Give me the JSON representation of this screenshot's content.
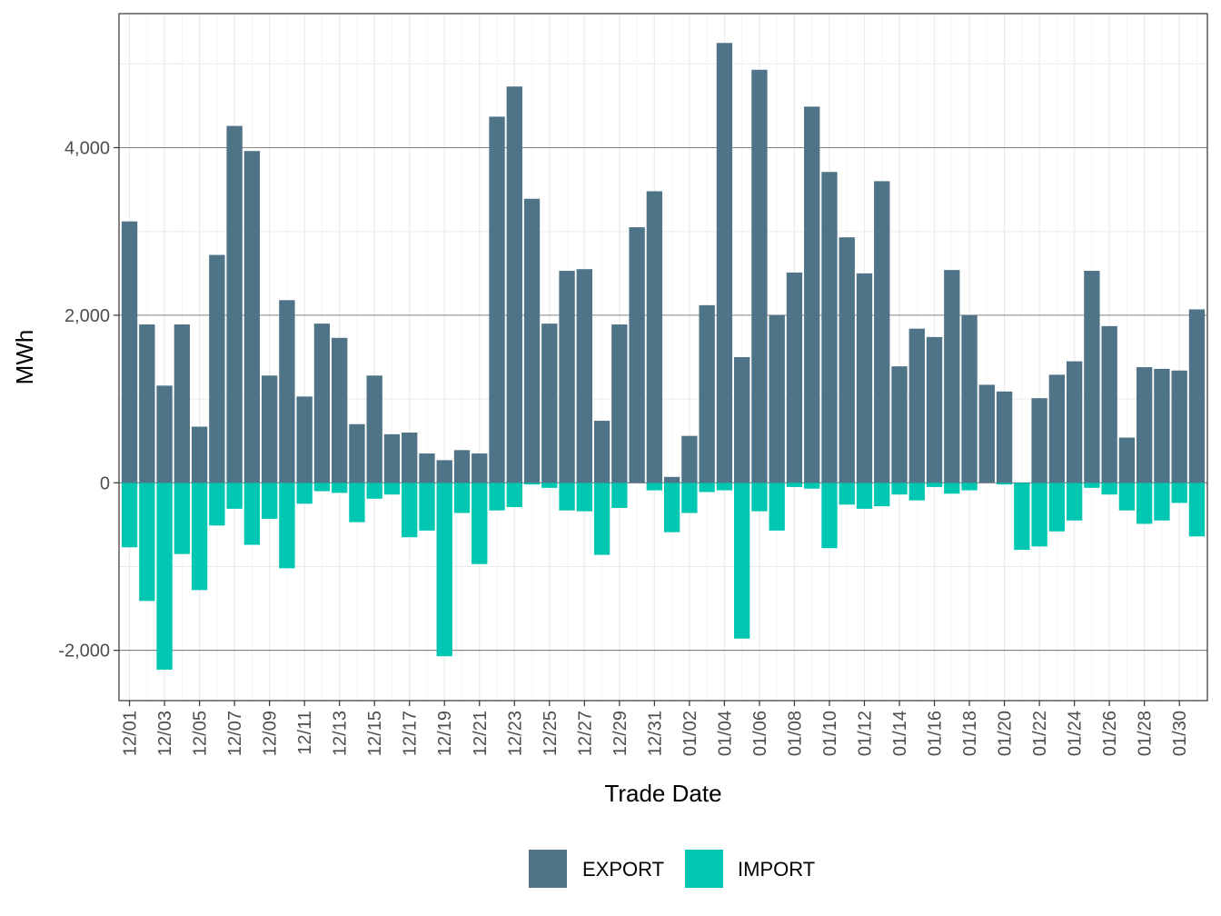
{
  "chart_data": {
    "type": "bar",
    "stacked": true,
    "xlabel": "Trade Date",
    "ylabel": "MWh",
    "ylim": [
      -2600,
      5600
    ],
    "yticks": [
      -2000,
      0,
      2000,
      4000
    ],
    "ytick_labels": [
      "-2,000",
      "0",
      "2,000",
      "4,000"
    ],
    "grid": true,
    "legend_position": "bottom",
    "categories": [
      "12/01",
      "12/02",
      "12/03",
      "12/04",
      "12/05",
      "12/06",
      "12/07",
      "12/08",
      "12/09",
      "12/10",
      "12/11",
      "12/12",
      "12/13",
      "12/14",
      "12/15",
      "12/16",
      "12/17",
      "12/18",
      "12/19",
      "12/20",
      "12/21",
      "12/22",
      "12/23",
      "12/24",
      "12/25",
      "12/26",
      "12/27",
      "12/28",
      "12/29",
      "12/30",
      "12/31",
      "01/01",
      "01/02",
      "01/03",
      "01/04",
      "01/05",
      "01/06",
      "01/07",
      "01/08",
      "01/09",
      "01/10",
      "01/11",
      "01/12",
      "01/13",
      "01/14",
      "01/15",
      "01/16",
      "01/17",
      "01/18",
      "01/19",
      "01/20",
      "01/21",
      "01/22",
      "01/23",
      "01/24",
      "01/25",
      "01/26",
      "01/27",
      "01/28",
      "01/29",
      "01/30",
      "01/31"
    ],
    "xtick_labels": [
      "12/01",
      "12/03",
      "12/05",
      "12/07",
      "12/09",
      "12/11",
      "12/13",
      "12/15",
      "12/17",
      "12/19",
      "12/21",
      "12/23",
      "12/25",
      "12/27",
      "12/29",
      "12/31",
      "01/02",
      "01/04",
      "01/06",
      "01/08",
      "01/10",
      "01/12",
      "01/14",
      "01/16",
      "01/18",
      "01/20",
      "01/22",
      "01/24",
      "01/26",
      "01/28",
      "01/30"
    ],
    "series": [
      {
        "name": "EXPORT",
        "color": "#4f7387",
        "values": [
          3120,
          1890,
          1160,
          1890,
          670,
          2720,
          4260,
          3960,
          1280,
          2180,
          1030,
          1900,
          1730,
          700,
          1280,
          580,
          600,
          350,
          270,
          390,
          350,
          4370,
          4730,
          3390,
          1900,
          2530,
          2550,
          740,
          1890,
          3050,
          3480,
          70,
          560,
          2120,
          5250,
          1500,
          4930,
          2000,
          2510,
          4490,
          3710,
          2930,
          2500,
          3600,
          1390,
          1840,
          1740,
          2540,
          2000,
          1170,
          1090,
          0,
          1010,
          1290,
          1450,
          2530,
          1870,
          540,
          1380,
          1360,
          1340,
          2070
        ]
      },
      {
        "name": "IMPORT",
        "color": "#00c7b2",
        "values": [
          -770,
          -1410,
          -2230,
          -850,
          -1280,
          -510,
          -310,
          -740,
          -430,
          -1020,
          -250,
          -100,
          -120,
          -470,
          -190,
          -140,
          -650,
          -570,
          -2070,
          -360,
          -970,
          -330,
          -290,
          -20,
          -60,
          -330,
          -340,
          -860,
          -300,
          0,
          -90,
          -590,
          -360,
          -110,
          -90,
          -1860,
          -340,
          -570,
          -50,
          -70,
          -780,
          -260,
          -310,
          -280,
          -140,
          -210,
          -50,
          -130,
          -90,
          0,
          -20,
          -800,
          -760,
          -580,
          -450,
          -60,
          -140,
          -330,
          -490,
          -450,
          -240,
          -640
        ]
      }
    ]
  }
}
